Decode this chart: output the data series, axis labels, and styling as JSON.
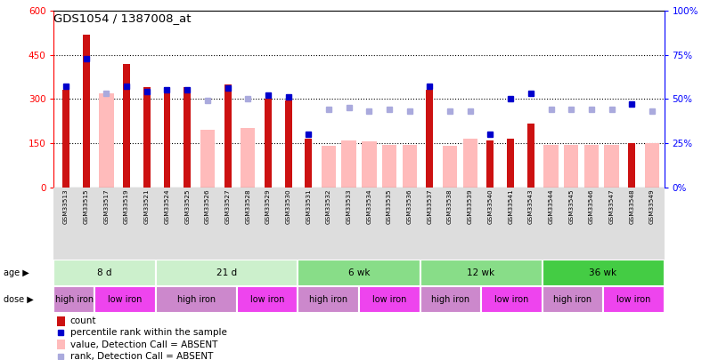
{
  "title": "GDS1054 / 1387008_at",
  "samples": [
    "GSM33513",
    "GSM33515",
    "GSM33517",
    "GSM33519",
    "GSM33521",
    "GSM33524",
    "GSM33525",
    "GSM33526",
    "GSM33527",
    "GSM33528",
    "GSM33529",
    "GSM33530",
    "GSM33531",
    "GSM33532",
    "GSM33533",
    "GSM33534",
    "GSM33535",
    "GSM33536",
    "GSM33537",
    "GSM33538",
    "GSM33539",
    "GSM33540",
    "GSM33541",
    "GSM33543",
    "GSM33544",
    "GSM33545",
    "GSM33546",
    "GSM33547",
    "GSM33548",
    "GSM33549"
  ],
  "count_values": [
    330,
    520,
    null,
    420,
    340,
    340,
    340,
    null,
    350,
    null,
    300,
    295,
    165,
    null,
    null,
    null,
    null,
    null,
    330,
    null,
    null,
    160,
    165,
    215,
    null,
    null,
    null,
    null,
    150,
    null
  ],
  "absent_values": [
    null,
    null,
    320,
    null,
    null,
    null,
    null,
    195,
    null,
    200,
    null,
    null,
    null,
    140,
    160,
    155,
    145,
    145,
    null,
    140,
    165,
    null,
    null,
    null,
    145,
    145,
    145,
    145,
    null,
    150
  ],
  "percentile_rank": [
    57,
    73,
    null,
    57,
    54,
    55,
    55,
    null,
    56,
    null,
    52,
    51,
    30,
    null,
    null,
    null,
    null,
    null,
    57,
    null,
    null,
    30,
    50,
    53,
    null,
    null,
    null,
    null,
    47,
    null
  ],
  "absent_rank": [
    null,
    null,
    53,
    null,
    null,
    null,
    null,
    49,
    null,
    50,
    null,
    null,
    null,
    44,
    45,
    43,
    44,
    43,
    null,
    43,
    43,
    null,
    null,
    null,
    44,
    44,
    44,
    44,
    null,
    43
  ],
  "age_groups": [
    {
      "label": "8 d",
      "start": 0,
      "end": 5,
      "color": "#ccf0cc"
    },
    {
      "label": "21 d",
      "start": 5,
      "end": 12,
      "color": "#ccf0cc"
    },
    {
      "label": "6 wk",
      "start": 12,
      "end": 18,
      "color": "#88dd88"
    },
    {
      "label": "12 wk",
      "start": 18,
      "end": 24,
      "color": "#88dd88"
    },
    {
      "label": "36 wk",
      "start": 24,
      "end": 30,
      "color": "#44cc44"
    }
  ],
  "dose_groups": [
    {
      "label": "high iron",
      "start": 0,
      "end": 2,
      "color": "#cc88cc"
    },
    {
      "label": "low iron",
      "start": 2,
      "end": 5,
      "color": "#ee44ee"
    },
    {
      "label": "high iron",
      "start": 5,
      "end": 9,
      "color": "#cc88cc"
    },
    {
      "label": "low iron",
      "start": 9,
      "end": 12,
      "color": "#ee44ee"
    },
    {
      "label": "high iron",
      "start": 12,
      "end": 15,
      "color": "#cc88cc"
    },
    {
      "label": "low iron",
      "start": 15,
      "end": 18,
      "color": "#ee44ee"
    },
    {
      "label": "high iron",
      "start": 18,
      "end": 21,
      "color": "#cc88cc"
    },
    {
      "label": "low iron",
      "start": 21,
      "end": 24,
      "color": "#ee44ee"
    },
    {
      "label": "high iron",
      "start": 24,
      "end": 27,
      "color": "#cc88cc"
    },
    {
      "label": "low iron",
      "start": 27,
      "end": 30,
      "color": "#ee44ee"
    }
  ],
  "ylim_left": [
    0,
    600
  ],
  "ylim_right": [
    0,
    100
  ],
  "yticks_left": [
    0,
    150,
    300,
    450,
    600
  ],
  "yticks_right": [
    0,
    25,
    50,
    75,
    100
  ],
  "bar_color_count": "#cc1111",
  "bar_color_absent": "#ffbbbb",
  "dot_color_rank": "#0000cc",
  "dot_color_absent_rank": "#aaaadd",
  "tick_label_bg": "#dddddd"
}
